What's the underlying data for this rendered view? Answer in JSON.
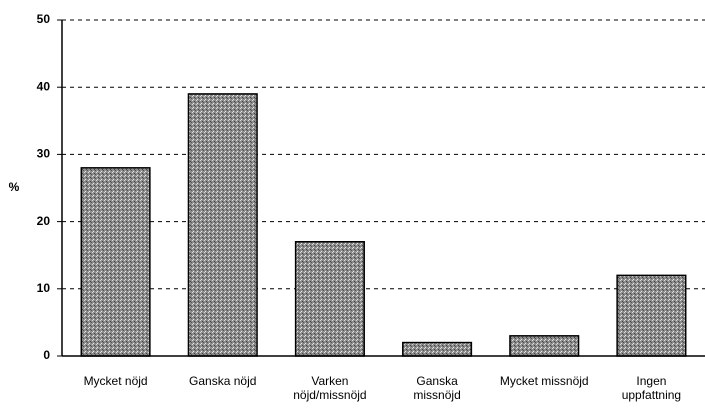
{
  "chart_data": {
    "type": "bar",
    "y_label": "%",
    "categories": [
      "Mycket nöjd",
      "Ganska nöjd",
      "Varken nöjd/missnöjd",
      "Ganska missnöjd",
      "Mycket missnöjd",
      "Ingen uppfattning"
    ],
    "values": [
      28,
      39,
      17,
      2,
      3,
      12
    ],
    "color": "#9a9a9a",
    "ylim": [
      0,
      50
    ],
    "yticks": [
      0,
      10,
      20,
      30,
      40,
      50
    ],
    "grid": true
  }
}
